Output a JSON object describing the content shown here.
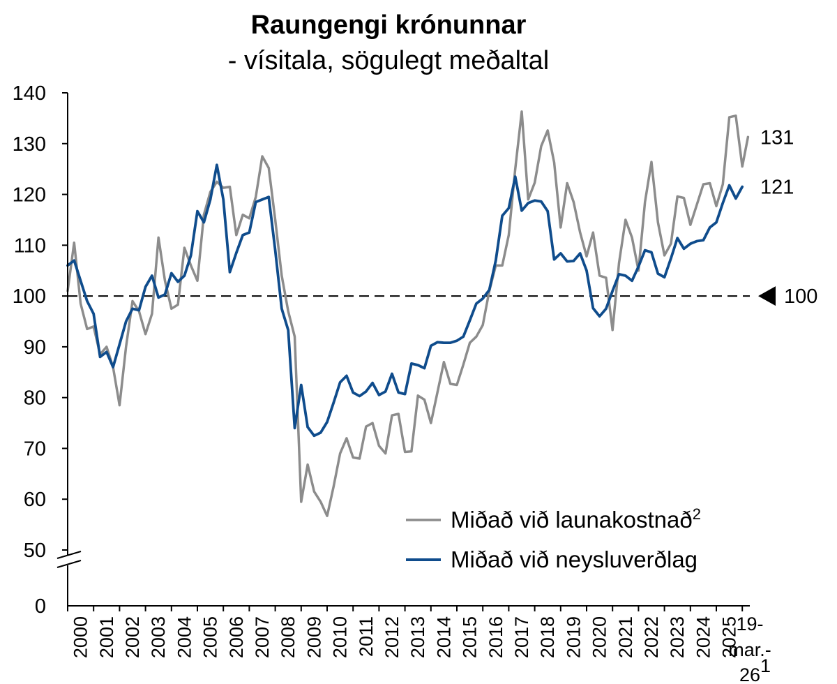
{
  "chart_data": {
    "type": "line",
    "title": "Raungengi krónunnar",
    "subtitle": "- vísitala, sögulegt meðaltal",
    "y_ticks": [
      "0",
      "50",
      "60",
      "70",
      "80",
      "90",
      "100",
      "110",
      "120",
      "130",
      "140"
    ],
    "ylim": [
      50,
      140
    ],
    "axis_break": true,
    "reference_line": {
      "value": 100,
      "label": "100"
    },
    "x_ticks": [
      "2000",
      "2001",
      "2002",
      "2003",
      "2004",
      "2005",
      "2006",
      "2007",
      "2008",
      "2009",
      "2010",
      "2011",
      "2012",
      "2013",
      "2014",
      "2015",
      "2016",
      "2017",
      "2018",
      "2019",
      "2020",
      "2021",
      "2022",
      "2023",
      "2024",
      "2025"
    ],
    "x_last_tick": [
      "19-",
      "mar.-",
      "26"
    ],
    "x_last_tick_sup": "1",
    "legend_position": "bottom-right",
    "series": [
      {
        "name": "Miðað við launakostnað",
        "name_sup": "2",
        "color": "#8c8c8c",
        "end_label": "131",
        "points": [
          [
            2000.0,
            101
          ],
          [
            2000.25,
            110.5
          ],
          [
            2000.5,
            98.5
          ],
          [
            2000.75,
            93.5
          ],
          [
            2001.0,
            94
          ],
          [
            2001.25,
            88.5
          ],
          [
            2001.5,
            90
          ],
          [
            2001.75,
            86
          ],
          [
            2002.0,
            78.5
          ],
          [
            2002.25,
            90
          ],
          [
            2002.5,
            99
          ],
          [
            2002.75,
            97
          ],
          [
            2003.0,
            92.5
          ],
          [
            2003.25,
            96.5
          ],
          [
            2003.5,
            111.5
          ],
          [
            2003.75,
            103
          ],
          [
            2004.0,
            97.5
          ],
          [
            2004.25,
            98.3
          ],
          [
            2004.5,
            109.5
          ],
          [
            2004.75,
            106
          ],
          [
            2005.0,
            103
          ],
          [
            2005.25,
            116
          ],
          [
            2005.5,
            120.5
          ],
          [
            2005.75,
            122.5
          ],
          [
            2006.0,
            121.3
          ],
          [
            2006.25,
            121.5
          ],
          [
            2006.5,
            112
          ],
          [
            2006.75,
            116
          ],
          [
            2007.0,
            115.3
          ],
          [
            2007.25,
            119.5
          ],
          [
            2007.5,
            127.5
          ],
          [
            2007.75,
            125.2
          ],
          [
            2008.0,
            115
          ],
          [
            2008.25,
            104
          ],
          [
            2008.5,
            97
          ],
          [
            2008.75,
            92
          ],
          [
            2009.0,
            59.5
          ],
          [
            2009.25,
            66.8
          ],
          [
            2009.5,
            61.5
          ],
          [
            2009.75,
            59.5
          ],
          [
            2010.0,
            56.7
          ],
          [
            2010.25,
            62.5
          ],
          [
            2010.5,
            69
          ],
          [
            2010.75,
            72
          ],
          [
            2011.0,
            68.2
          ],
          [
            2011.25,
            68
          ],
          [
            2011.5,
            74.3
          ],
          [
            2011.75,
            75
          ],
          [
            2012.0,
            70.5
          ],
          [
            2012.25,
            69
          ],
          [
            2012.5,
            76.5
          ],
          [
            2012.75,
            76.8
          ],
          [
            2013.0,
            69.3
          ],
          [
            2013.25,
            69.4
          ],
          [
            2013.5,
            80.4
          ],
          [
            2013.75,
            79.6
          ],
          [
            2014.0,
            75
          ],
          [
            2014.25,
            81
          ],
          [
            2014.5,
            87
          ],
          [
            2014.75,
            82.7
          ],
          [
            2015.0,
            82.5
          ],
          [
            2015.25,
            86.5
          ],
          [
            2015.5,
            90.8
          ],
          [
            2015.75,
            92
          ],
          [
            2016.0,
            94.3
          ],
          [
            2016.25,
            101
          ],
          [
            2016.5,
            106
          ],
          [
            2016.75,
            106
          ],
          [
            2017.0,
            112
          ],
          [
            2017.25,
            125
          ],
          [
            2017.5,
            136.3
          ],
          [
            2017.75,
            119
          ],
          [
            2018.0,
            122.3
          ],
          [
            2018.25,
            129.5
          ],
          [
            2018.5,
            132.6
          ],
          [
            2018.75,
            126.3
          ],
          [
            2019.0,
            113.5
          ],
          [
            2019.25,
            122.2
          ],
          [
            2019.5,
            118.5
          ],
          [
            2019.75,
            112.5
          ],
          [
            2020.0,
            107.8
          ],
          [
            2020.25,
            112.5
          ],
          [
            2020.5,
            104
          ],
          [
            2020.75,
            103.6
          ],
          [
            2021.0,
            93.3
          ],
          [
            2021.25,
            106.5
          ],
          [
            2021.5,
            115
          ],
          [
            2021.75,
            111.5
          ],
          [
            2022.0,
            105
          ],
          [
            2022.25,
            118.5
          ],
          [
            2022.5,
            126.4
          ],
          [
            2022.75,
            114.5
          ],
          [
            2023.0,
            108
          ],
          [
            2023.25,
            110.3
          ],
          [
            2023.5,
            119.6
          ],
          [
            2023.75,
            119.3
          ],
          [
            2024.0,
            114
          ],
          [
            2024.25,
            118
          ],
          [
            2024.5,
            122
          ],
          [
            2024.75,
            122.2
          ],
          [
            2025.0,
            117.7
          ],
          [
            2025.25,
            122
          ],
          [
            2025.5,
            135.2
          ],
          [
            2025.75,
            135.5
          ],
          [
            2026.0,
            125.5
          ],
          [
            2026.22,
            131.3
          ]
        ]
      },
      {
        "name": "Miðað við neysluverðlag",
        "color": "#0f4c8c",
        "end_label": "121",
        "points": [
          [
            2000.0,
            106
          ],
          [
            2000.25,
            107
          ],
          [
            2000.5,
            103
          ],
          [
            2000.75,
            99
          ],
          [
            2001.0,
            96.5
          ],
          [
            2001.25,
            88
          ],
          [
            2001.5,
            89
          ],
          [
            2001.75,
            86
          ],
          [
            2002.0,
            90.5
          ],
          [
            2002.25,
            95
          ],
          [
            2002.5,
            97.5
          ],
          [
            2002.75,
            97.2
          ],
          [
            2003.0,
            101.8
          ],
          [
            2003.25,
            104
          ],
          [
            2003.5,
            99.7
          ],
          [
            2003.75,
            100.3
          ],
          [
            2004.0,
            104.5
          ],
          [
            2004.25,
            102.8
          ],
          [
            2004.5,
            104
          ],
          [
            2004.75,
            108
          ],
          [
            2005.0,
            116.7
          ],
          [
            2005.25,
            114.5
          ],
          [
            2005.5,
            119
          ],
          [
            2005.75,
            125.8
          ],
          [
            2006.0,
            119
          ],
          [
            2006.25,
            104.7
          ],
          [
            2006.5,
            108.5
          ],
          [
            2006.75,
            112
          ],
          [
            2007.0,
            112.5
          ],
          [
            2007.25,
            118.5
          ],
          [
            2007.5,
            119
          ],
          [
            2007.75,
            119.5
          ],
          [
            2008.0,
            109
          ],
          [
            2008.25,
            97.5
          ],
          [
            2008.5,
            93.3
          ],
          [
            2008.75,
            74
          ],
          [
            2009.0,
            82.5
          ],
          [
            2009.25,
            74.2
          ],
          [
            2009.5,
            72.5
          ],
          [
            2009.75,
            73.1
          ],
          [
            2010.0,
            75.2
          ],
          [
            2010.25,
            79
          ],
          [
            2010.5,
            83
          ],
          [
            2010.75,
            84.3
          ],
          [
            2011.0,
            81
          ],
          [
            2011.25,
            80.3
          ],
          [
            2011.5,
            81.2
          ],
          [
            2011.75,
            82.9
          ],
          [
            2012.0,
            80.5
          ],
          [
            2012.25,
            81.2
          ],
          [
            2012.5,
            84.7
          ],
          [
            2012.75,
            81
          ],
          [
            2013.0,
            80.7
          ],
          [
            2013.25,
            86.7
          ],
          [
            2013.5,
            86.4
          ],
          [
            2013.75,
            85.8
          ],
          [
            2014.0,
            90.2
          ],
          [
            2014.25,
            90.9
          ],
          [
            2014.5,
            90.8
          ],
          [
            2014.75,
            90.8
          ],
          [
            2015.0,
            91.2
          ],
          [
            2015.25,
            92
          ],
          [
            2015.5,
            95.2
          ],
          [
            2015.75,
            98.5
          ],
          [
            2016.0,
            99.5
          ],
          [
            2016.25,
            101.2
          ],
          [
            2016.5,
            107
          ],
          [
            2016.75,
            115.8
          ],
          [
            2017.0,
            117.3
          ],
          [
            2017.25,
            123.5
          ],
          [
            2017.5,
            116.8
          ],
          [
            2017.75,
            118.3
          ],
          [
            2018.0,
            118.8
          ],
          [
            2018.25,
            118.6
          ],
          [
            2018.5,
            116.7
          ],
          [
            2018.75,
            107.2
          ],
          [
            2019.0,
            108.4
          ],
          [
            2019.25,
            106.8
          ],
          [
            2019.5,
            106.9
          ],
          [
            2019.75,
            108.4
          ],
          [
            2020.0,
            105
          ],
          [
            2020.25,
            97.6
          ],
          [
            2020.5,
            96
          ],
          [
            2020.75,
            97.5
          ],
          [
            2021.0,
            101
          ],
          [
            2021.25,
            104.3
          ],
          [
            2021.5,
            104
          ],
          [
            2021.75,
            103
          ],
          [
            2022.0,
            105.8
          ],
          [
            2022.25,
            109
          ],
          [
            2022.5,
            108.6
          ],
          [
            2022.75,
            104.4
          ],
          [
            2023.0,
            103.7
          ],
          [
            2023.25,
            107.4
          ],
          [
            2023.5,
            111.4
          ],
          [
            2023.75,
            109.3
          ],
          [
            2024.0,
            110.3
          ],
          [
            2024.25,
            110.8
          ],
          [
            2024.5,
            111
          ],
          [
            2024.75,
            113.5
          ],
          [
            2025.0,
            114.5
          ],
          [
            2025.25,
            118.3
          ],
          [
            2025.5,
            121.8
          ],
          [
            2025.75,
            119.2
          ],
          [
            2026.0,
            121.5
          ]
        ]
      }
    ]
  }
}
